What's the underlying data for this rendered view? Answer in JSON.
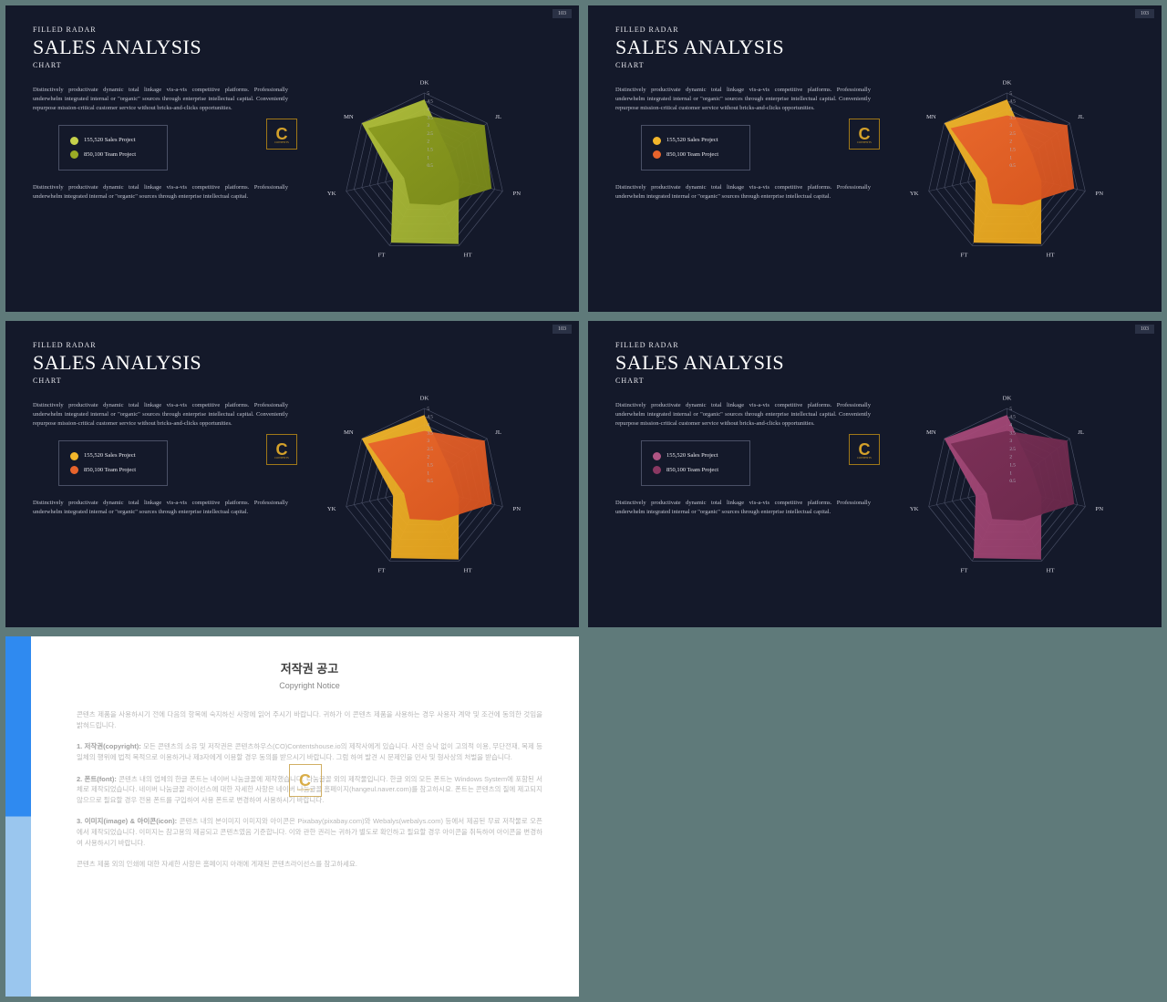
{
  "page_bg": "#5f7a7a",
  "slide": {
    "bg": "#14192a",
    "pretitle": "FILLED RADAR",
    "title": "SALES ANALYSIS",
    "subtitle": "CHART",
    "page_num": "103",
    "para1": "Distinctively productivate dynamic total linkage vis-a-vis competitive platforms. Professionally underwhelm integrated internal or \"organic\" sources through enterprise intellectual capital. Conveniently repurpose mission-critical customer service without bricks-and-clicks opportunities.",
    "para2": "Distinctively productivate dynamic total linkage vis-a-vis competitive platforms. Professionally underwhelm integrated internal or \"organic\" sources through enterprise intellectual capital.",
    "legend": {
      "item1_value": "155,520 Sales Project",
      "item2_value": "850,100 Team Project"
    },
    "logo_text": "C",
    "logo_sub": "CONTENTS"
  },
  "radar": {
    "axes": [
      "DK",
      "JL",
      "PN",
      "HT",
      "FT",
      "YK",
      "MN"
    ],
    "levels": [
      0.5,
      1,
      1.5,
      2,
      2.5,
      3,
      3.5,
      4,
      4.5,
      5
    ],
    "tick_labels": [
      "0.5",
      "1",
      "1.5",
      "2",
      "2.5",
      "3",
      "3.5",
      "4",
      "4.5",
      "5"
    ],
    "max": 5,
    "grid_color": "#4a5066",
    "axis_label_color": "#d8d8e2",
    "tick_color": "#b0b0bf",
    "series_a": [
      4.6,
      2.0,
      2.2,
      4.9,
      4.8,
      2.0,
      5.0
    ],
    "series_b": [
      3.6,
      4.8,
      4.3,
      2.2,
      2.1,
      1.3,
      4.5
    ]
  },
  "variants": [
    {
      "colorA_fill": "#b3c23a",
      "colorA_fill2": "#9dad2f",
      "colorB_fill": "#8a9a1f",
      "colorB_fill2": "#788818",
      "dot1": "#c6d14a",
      "dot2": "#9aab25"
    },
    {
      "colorA_fill": "#f2b62b",
      "colorA_fill2": "#e8a41c",
      "colorB_fill": "#e8642c",
      "colorB_fill2": "#d6521e",
      "dot1": "#f2b62b",
      "dot2": "#e8642c"
    },
    {
      "colorA_fill": "#f2b62b",
      "colorA_fill2": "#e8a41c",
      "colorB_fill": "#e8642c",
      "colorB_fill2": "#d6521e",
      "dot1": "#f2b62b",
      "dot2": "#e8642c"
    },
    {
      "colorA_fill": "#a84a7a",
      "colorA_fill2": "#963f6b",
      "colorB_fill": "#7a2f56",
      "colorB_fill2": "#6a284a",
      "dot1": "#b05584",
      "dot2": "#8a3862"
    }
  ],
  "copyright": {
    "title": "저작권 공고",
    "subtitle": "Copyright Notice",
    "p0": "콘텐츠 제품을 사용하시기 전에 다음의 항목에 숙지하신 사항에 읽어 주시기 바랍니다. 귀하가 이 콘텐츠 제품을 사용하는 경우 사용자 계약 및 조건에 동의한 것임을 밝혀드립니다.",
    "p1_b": "1. 저작권(copyright):",
    "p1": " 모든 콘텐츠의 소유 및 저작권은 콘텐츠하우스(CO)Contentshouse.io의 제작사에게 있습니다. 사전 승낙 없이 고의적 이용, 무단전재, 복제 등 일체의 행위에 법적 목적으로 이용하거나 제3자에게 이용할 경우 동의를 받으시기 바랍니다. 그럼 하여 발견 시 문제인을 민사 및 형사상의 처벌을 받습니다.",
    "p2_b": "2. 폰트(font):",
    "p2": " 콘텐츠 내의 업체의 한글 폰트는 네이버 나눔글꼴에 제작했습니다. 나눔글꼴 외의 제작물입니다. 한글 외의 모든 폰트는 Windows System에 포함된 서체로 제작되었습니다. 네이버 나눔글꼴 라이선스에 대한 자세한 사항은 네이버 나눔글꼴 홈페이지(hangeul.naver.com)를 참고하시요. 폰트는 콘텐츠의 질에 제고되지 않으므로 필요할 경우 전용 폰트를 구입하여 사용 폰트로 변경하여 사용하시기 바랍니다.",
    "p3_b": "3. 이미지(image) & 아이콘(icon):",
    "p3": " 콘텐츠 내의 본이미지 이미지와 아이콘은 Pixabay(pixabay.com)와 Webalys(webalys.com) 등에서 제공된 무료 저작물로 오픈에서 제작되었습니다. 이미지는 참고용의 제공되고 콘텐츠였음 기준합니다. 이와 관한 권리는 귀하가 별도로 확인하고 필요할 경우 아이콘을 취득하여 아이콘을 변경하여 사용하시기 바랍니다.",
    "p4": "콘텐츠 제품 외의 인쇄에 대한 자세한 사항은 홈페이지 아래에 게재된 콘텐츠라이선스를 참고하세요."
  }
}
